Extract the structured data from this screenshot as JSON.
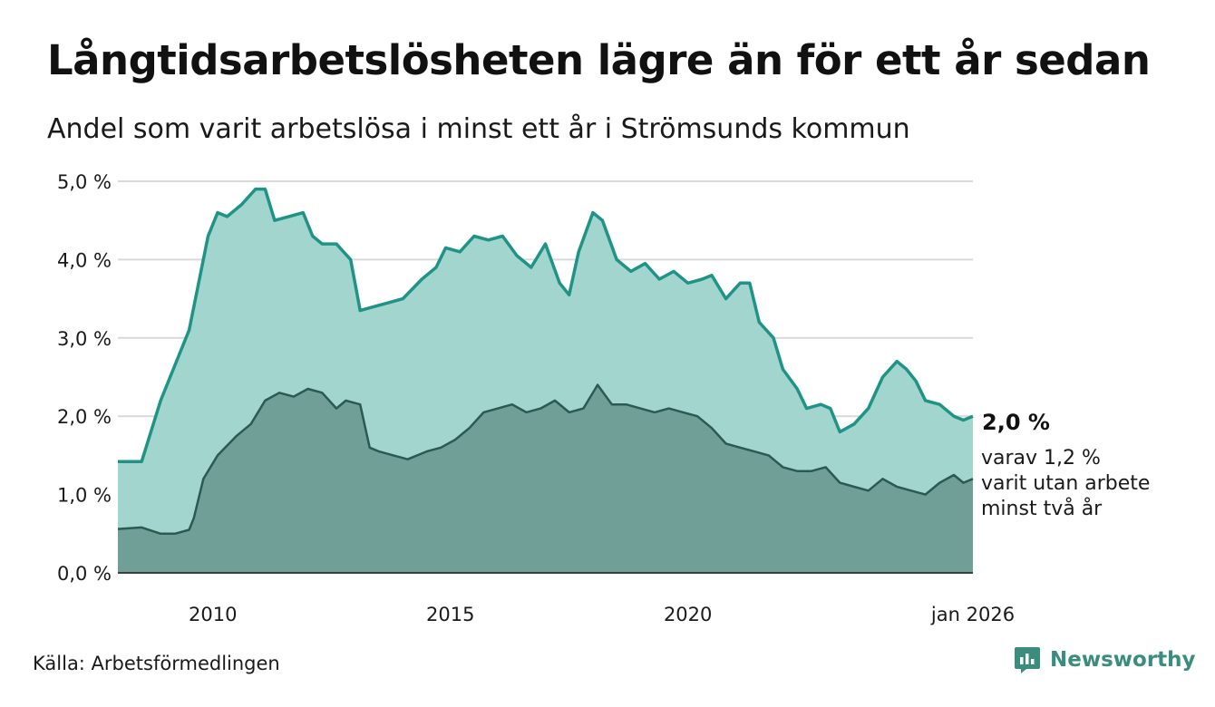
{
  "title": "Långtidsarbetslösheten lägre än för ett år sedan",
  "subtitle": "Andel som varit arbetslösa i minst ett år i Strömsunds kommun",
  "source": "Källa: Arbetsförmedlingen",
  "brand": "Newsworthy",
  "colors": {
    "main_line": "#1f9486",
    "main_fill": "#a3d5cf",
    "sub_line": "#2c5a52",
    "sub_fill": "#6f9f96",
    "grid": "#d9d9d9"
  },
  "annotations": {
    "latest_value": "2,0 %",
    "sub_line1": "varav 1,2 %",
    "sub_line2": "varit utan arbete",
    "sub_line3": "minst två år"
  },
  "chart_data": {
    "type": "area",
    "title": "Långtidsarbetslösheten lägre än för ett år sedan",
    "subtitle": "Andel som varit arbetslösa i minst ett år i Strömsunds kommun",
    "xlabel": "",
    "ylabel": "",
    "ylim": [
      0,
      5
    ],
    "xlim": [
      2008.0,
      2026.0
    ],
    "y_ticks": [
      {
        "value": 0,
        "label": "0,0 %"
      },
      {
        "value": 1,
        "label": "1,0 %"
      },
      {
        "value": 2,
        "label": "2,0 %"
      },
      {
        "value": 3,
        "label": "3,0 %"
      },
      {
        "value": 4,
        "label": "4,0 %"
      },
      {
        "value": 5,
        "label": "5,0 %"
      }
    ],
    "x_ticks": [
      {
        "value": 2010.0,
        "label": "2010"
      },
      {
        "value": 2015.0,
        "label": "2015"
      },
      {
        "value": 2020.0,
        "label": "2020"
      },
      {
        "value": 2026.0,
        "label": "jan 2026"
      }
    ],
    "grid": true,
    "series": [
      {
        "name": "Minst ett år",
        "x": [
          2008.0,
          2008.5,
          2008.9,
          2009.3,
          2009.5,
          2009.9,
          2010.1,
          2010.3,
          2010.6,
          2010.9,
          2011.1,
          2011.3,
          2011.6,
          2011.9,
          2012.1,
          2012.3,
          2012.6,
          2012.9,
          2013.1,
          2013.4,
          2013.7,
          2014.0,
          2014.4,
          2014.7,
          2014.9,
          2015.2,
          2015.5,
          2015.8,
          2016.1,
          2016.4,
          2016.7,
          2017.0,
          2017.3,
          2017.5,
          2017.7,
          2018.0,
          2018.2,
          2018.5,
          2018.8,
          2019.1,
          2019.4,
          2019.7,
          2020.0,
          2020.3,
          2020.5,
          2020.8,
          2021.1,
          2021.3,
          2021.5,
          2021.8,
          2022.0,
          2022.3,
          2022.5,
          2022.8,
          2023.0,
          2023.2,
          2023.5,
          2023.8,
          2024.1,
          2024.4,
          2024.6,
          2024.8,
          2025.0,
          2025.3,
          2025.6,
          2025.8,
          2026.0
        ],
        "values": [
          1.42,
          1.42,
          2.2,
          2.8,
          3.1,
          4.3,
          4.6,
          4.55,
          4.7,
          4.9,
          4.9,
          4.5,
          4.55,
          4.6,
          4.3,
          4.2,
          4.2,
          4.0,
          3.35,
          3.4,
          3.45,
          3.5,
          3.75,
          3.9,
          4.15,
          4.1,
          4.3,
          4.25,
          4.3,
          4.05,
          3.9,
          4.2,
          3.7,
          3.55,
          4.1,
          4.6,
          4.5,
          4.0,
          3.85,
          3.95,
          3.75,
          3.85,
          3.7,
          3.75,
          3.8,
          3.5,
          3.7,
          3.7,
          3.2,
          3.0,
          2.6,
          2.35,
          2.1,
          2.15,
          2.1,
          1.8,
          1.9,
          2.1,
          2.5,
          2.7,
          2.6,
          2.45,
          2.2,
          2.15,
          2.0,
          1.95,
          2.0
        ]
      },
      {
        "name": "Minst två år",
        "x": [
          2008.0,
          2008.5,
          2008.9,
          2009.2,
          2009.5,
          2009.6,
          2009.8,
          2010.1,
          2010.5,
          2010.8,
          2011.1,
          2011.4,
          2011.7,
          2012.0,
          2012.3,
          2012.6,
          2012.8,
          2013.1,
          2013.3,
          2013.5,
          2013.8,
          2014.1,
          2014.5,
          2014.8,
          2015.1,
          2015.4,
          2015.7,
          2016.0,
          2016.3,
          2016.6,
          2016.9,
          2017.2,
          2017.5,
          2017.8,
          2018.1,
          2018.4,
          2018.7,
          2019.0,
          2019.3,
          2019.6,
          2019.9,
          2020.2,
          2020.5,
          2020.8,
          2021.1,
          2021.4,
          2021.7,
          2022.0,
          2022.3,
          2022.6,
          2022.9,
          2023.2,
          2023.5,
          2023.8,
          2024.1,
          2024.4,
          2024.7,
          2025.0,
          2025.3,
          2025.6,
          2025.8,
          2026.0
        ],
        "values": [
          0.56,
          0.58,
          0.5,
          0.5,
          0.55,
          0.7,
          1.2,
          1.5,
          1.75,
          1.9,
          2.2,
          2.3,
          2.25,
          2.35,
          2.3,
          2.1,
          2.2,
          2.15,
          1.6,
          1.55,
          1.5,
          1.45,
          1.55,
          1.6,
          1.7,
          1.85,
          2.05,
          2.1,
          2.15,
          2.05,
          2.1,
          2.2,
          2.05,
          2.1,
          2.4,
          2.15,
          2.15,
          2.1,
          2.05,
          2.1,
          2.05,
          2.0,
          1.85,
          1.65,
          1.6,
          1.55,
          1.5,
          1.35,
          1.3,
          1.3,
          1.35,
          1.15,
          1.1,
          1.05,
          1.2,
          1.1,
          1.05,
          1.0,
          1.15,
          1.25,
          1.15,
          1.2
        ]
      }
    ]
  }
}
